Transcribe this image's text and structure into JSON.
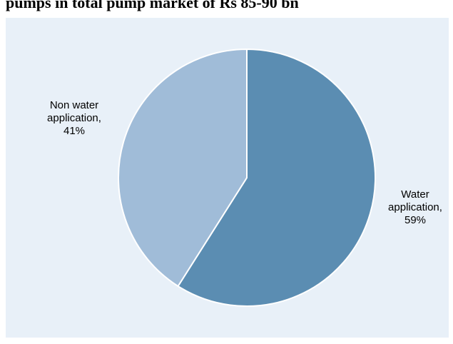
{
  "chart_data": {
    "type": "pie",
    "title": "pumps in total pump market of Rs 85-90 bn",
    "slices": [
      {
        "label_lines": [
          "Water",
          "application,",
          "59%"
        ],
        "value": 59,
        "color": "#5b8db2"
      },
      {
        "label_lines": [
          "Non water",
          "application,",
          "41%"
        ],
        "value": 41,
        "color": "#a0bcd8"
      }
    ],
    "start_angle_deg": 0,
    "direction": "clockwise",
    "background": "#e8f0f8",
    "slice_border": "#ffffff"
  }
}
